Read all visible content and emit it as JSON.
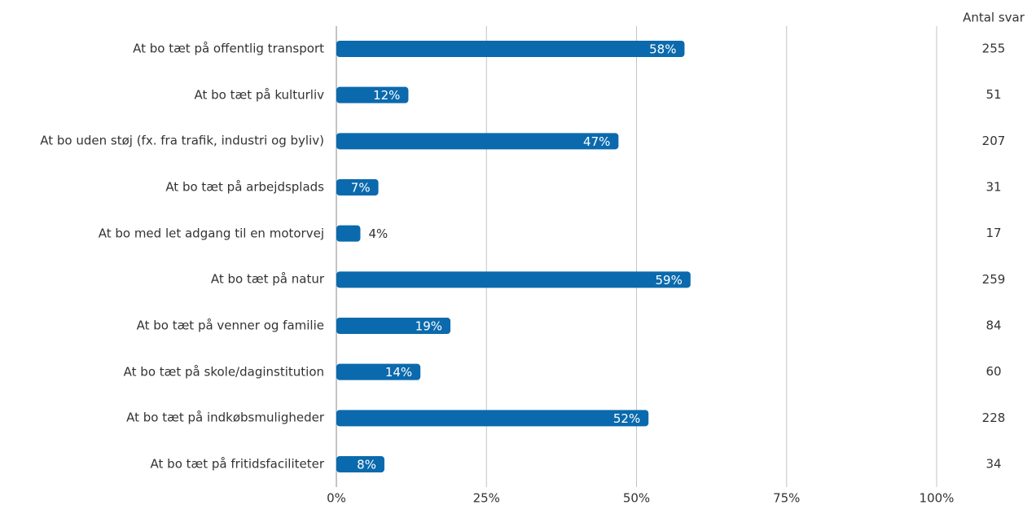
{
  "chart_data": {
    "type": "bar",
    "orientation": "horizontal",
    "categories": [
      "At bo tæt på offentlig transport",
      "At bo tæt på kulturliv",
      "At bo uden støj (fx. fra trafik, industri og byliv)",
      "At bo tæt på arbejdsplads",
      "At bo med let adgang til en motorvej",
      "At bo tæt på natur",
      "At bo tæt på venner og familie",
      "At bo tæt på skole/daginstitution",
      "At bo tæt på indkøbsmuligheder",
      "At bo tæt på fritidsfaciliteter"
    ],
    "values": [
      58,
      12,
      47,
      7,
      4,
      59,
      19,
      14,
      52,
      8
    ],
    "value_labels": [
      "58%",
      "12%",
      "47%",
      "7%",
      "4%",
      "59%",
      "19%",
      "14%",
      "52%",
      "8%"
    ],
    "color": "#0a6aad",
    "xlim": [
      0,
      100
    ],
    "xticks": [
      {
        "value": 0,
        "label": "0%"
      },
      {
        "value": 25,
        "label": "25%"
      },
      {
        "value": 50,
        "label": "50%"
      },
      {
        "value": 75,
        "label": "75%"
      },
      {
        "value": 100,
        "label": "100%"
      }
    ],
    "grid": true,
    "counts": {
      "title": "Antal svar",
      "values": [
        255,
        51,
        207,
        31,
        17,
        259,
        84,
        60,
        228,
        34
      ]
    }
  }
}
